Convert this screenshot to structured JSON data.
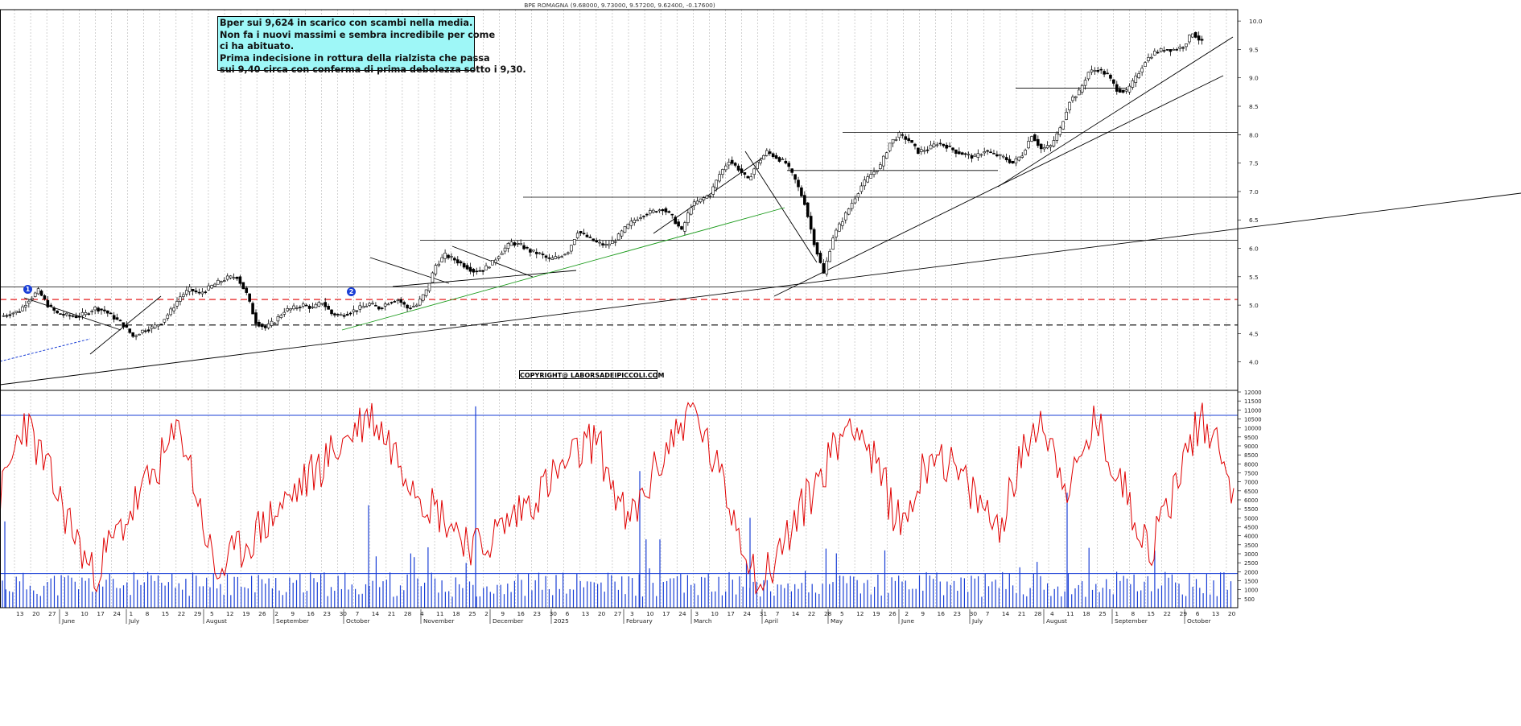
{
  "title": "BPE ROMAGNA (9.68000, 9.73000, 9.57200, 9.62400, -0.17600)",
  "note": [
    "Bper sui 9,624 in scarico con scambi nella media.",
    "Non fa i nuovi massimi e sembra incredibile per come",
    "ci ha abituato.",
    "Prima indecisione in  rottura della rialzista che passa",
    "sui 9,40 circa con conferma di prima debolezza sotto i 9,30."
  ],
  "copyright": "COPYRIGHT@ LABORSADEIPICCOLI.COM",
  "badges": [
    "1",
    "2"
  ],
  "colors": {
    "background": "#ffffff",
    "note_bg": "#9ef7f7",
    "indicator": "#e00000",
    "volume": "#1a3fd6",
    "green_line": "#1a9a1a",
    "red_dash": "#e00000"
  },
  "chart_data": [
    {
      "type": "candlestick",
      "ylim": [
        3.5,
        10.2
      ],
      "yticks": [
        "4.0",
        "4.5",
        "5.0",
        "5.5",
        "6.0",
        "6.5",
        "7.0",
        "7.5",
        "8.0",
        "8.5",
        "9.0",
        "9.5",
        "10.0"
      ],
      "xticks": [
        "13",
        "20",
        "27",
        "3",
        "10",
        "17",
        "24",
        "1",
        "8",
        "15",
        "22",
        "29",
        "5",
        "12",
        "19",
        "26",
        "2",
        "9",
        "16",
        "23",
        "30",
        "7",
        "14",
        "21",
        "28",
        "4",
        "11",
        "18",
        "25",
        "2",
        "9",
        "16",
        "23",
        "30",
        "6",
        "13",
        "20",
        "27",
        "3",
        "10",
        "17",
        "24",
        "3",
        "10",
        "17",
        "24",
        "31",
        "7",
        "14",
        "22",
        "28",
        "5",
        "12",
        "19",
        "26",
        "2",
        "9",
        "16",
        "23",
        "30",
        "7",
        "14",
        "21",
        "28",
        "4",
        "11",
        "18",
        "25",
        "1",
        "8",
        "15",
        "22",
        "29",
        "6",
        "13",
        "20"
      ],
      "months": [
        "June",
        "July",
        "August",
        "September",
        "October",
        "November",
        "December",
        "2025",
        "February",
        "March",
        "April",
        "May",
        "June",
        "July",
        "August",
        "September",
        "October"
      ],
      "horizontal_levels": [
        5.32,
        6.14,
        6.9,
        7.37,
        8.04,
        8.82
      ],
      "dashed_levels": [
        {
          "value": 5.1,
          "color": "red"
        },
        {
          "value": 4.65,
          "color": "black"
        }
      ],
      "close_series": [
        4.85,
        4.9,
        5.1,
        5.25,
        5.0,
        4.85,
        4.82,
        4.8,
        4.85,
        4.95,
        4.9,
        4.78,
        4.65,
        4.45,
        4.55,
        4.6,
        4.7,
        4.9,
        5.15,
        5.28,
        5.2,
        5.3,
        5.4,
        5.48,
        5.5,
        5.2,
        4.7,
        4.6,
        4.72,
        4.9,
        4.95,
        5.0,
        4.95,
        5.05,
        4.85,
        4.82,
        4.88,
        4.95,
        5.02,
        4.95,
        5.05,
        5.1,
        4.95,
        5.0,
        5.25,
        5.7,
        5.88,
        5.8,
        5.7,
        5.6,
        5.62,
        5.75,
        5.95,
        6.1,
        6.05,
        5.95,
        5.9,
        5.8,
        5.85,
        5.95,
        6.3,
        6.2,
        6.1,
        6.05,
        6.15,
        6.35,
        6.5,
        6.6,
        6.65,
        6.7,
        6.55,
        6.3,
        6.75,
        6.85,
        6.95,
        7.3,
        7.55,
        7.4,
        7.2,
        7.5,
        7.7,
        7.6,
        7.5,
        7.2,
        6.8,
        6.1,
        5.55,
        6.2,
        6.5,
        6.8,
        7.1,
        7.3,
        7.45,
        7.85,
        8.0,
        7.9,
        7.7,
        7.75,
        7.85,
        7.8,
        7.7,
        7.65,
        7.6,
        7.72,
        7.65,
        7.6,
        7.5,
        7.65,
        8.0,
        7.75,
        7.8,
        8.1,
        8.6,
        8.75,
        9.1,
        9.15,
        9.05,
        8.8,
        8.75,
        9.0,
        9.3,
        9.45,
        9.5,
        9.5,
        9.55,
        9.8,
        9.62
      ],
      "volume_levels": [
        1900,
        10700
      ],
      "indicator_ylim": [
        0,
        12000
      ],
      "indicator_yticks": [
        "500",
        "1000",
        "1500",
        "2000",
        "2500",
        "3000",
        "3500",
        "4000",
        "4500",
        "5000",
        "5500",
        "6000",
        "6500",
        "7000",
        "7500",
        "8000",
        "8500",
        "9000",
        "9500",
        "10000",
        "10500",
        "11000",
        "11500",
        "12000"
      ]
    }
  ]
}
